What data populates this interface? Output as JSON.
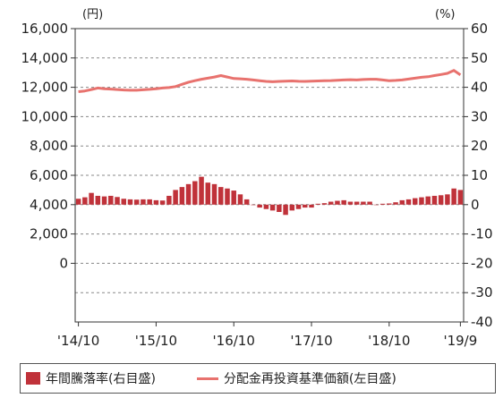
{
  "chart_data": {
    "type": "bar+line",
    "left_axis_unit": "(円)",
    "right_axis_unit": "(%)",
    "left_ticks": [
      "16,000",
      "14,000",
      "12,000",
      "10,000",
      "8,000",
      "6,000",
      "4,000",
      "2,000",
      "0"
    ],
    "left_tick_values": [
      16000,
      14000,
      12000,
      10000,
      8000,
      6000,
      4000,
      2000,
      0
    ],
    "left_ylim": [
      -4000,
      16000
    ],
    "right_ticks": [
      "60",
      "50",
      "40",
      "30",
      "20",
      "10",
      "0",
      "-10",
      "-20",
      "-30",
      "-40"
    ],
    "right_tick_values": [
      60,
      50,
      40,
      30,
      20,
      10,
      0,
      -10,
      -20,
      -30,
      -40
    ],
    "right_ylim": [
      -40,
      60
    ],
    "x_ticks": [
      "'14/10",
      "'15/10",
      "'16/10",
      "'17/10",
      "'18/10",
      "'19/9"
    ],
    "x_tick_index": [
      0,
      12,
      24,
      36,
      48,
      59
    ],
    "grid": true,
    "colors": {
      "bar": "#c0323a",
      "line": "#e8726e",
      "grid": "#888888",
      "axis": "#333333"
    },
    "series": [
      {
        "name": "年間騰落率(右目盛)",
        "axis": "right",
        "type": "bar",
        "values": [
          2,
          2.5,
          4,
          3,
          2.8,
          3,
          2.6,
          2,
          1.8,
          1.7,
          1.8,
          1.8,
          1.5,
          1.4,
          3,
          5,
          6,
          7,
          8,
          9.5,
          7.5,
          7,
          6,
          5.5,
          4.8,
          3.5,
          1.8,
          0,
          -1,
          -1.5,
          -2,
          -2.5,
          -3.5,
          -2,
          -1.5,
          -1,
          -1,
          0.3,
          0.5,
          1,
          1.3,
          1.5,
          1,
          1,
          1,
          1,
          0,
          0.3,
          0.4,
          0.8,
          1.5,
          1.8,
          2.2,
          2.5,
          2.8,
          3,
          3.2,
          3.5,
          5.5,
          5
        ]
      },
      {
        "name": "分配金再投資基準価額(左目盛)",
        "axis": "left",
        "type": "line",
        "values": [
          11700,
          11750,
          11850,
          11950,
          11900,
          11880,
          11850,
          11820,
          11800,
          11800,
          11830,
          11860,
          11900,
          11950,
          11980,
          12050,
          12200,
          12350,
          12450,
          12550,
          12620,
          12700,
          12800,
          12700,
          12600,
          12580,
          12550,
          12500,
          12450,
          12400,
          12380,
          12400,
          12420,
          12430,
          12410,
          12400,
          12420,
          12430,
          12450,
          12460,
          12480,
          12500,
          12520,
          12500,
          12530,
          12550,
          12550,
          12500,
          12450,
          12470,
          12500,
          12560,
          12620,
          12680,
          12720,
          12800,
          12870,
          12950,
          13150,
          12850
        ]
      }
    ]
  },
  "legend": {
    "bar_label": "年間騰落率(右目盛)",
    "line_label": "分配金再投資基準価額(左目盛)"
  }
}
